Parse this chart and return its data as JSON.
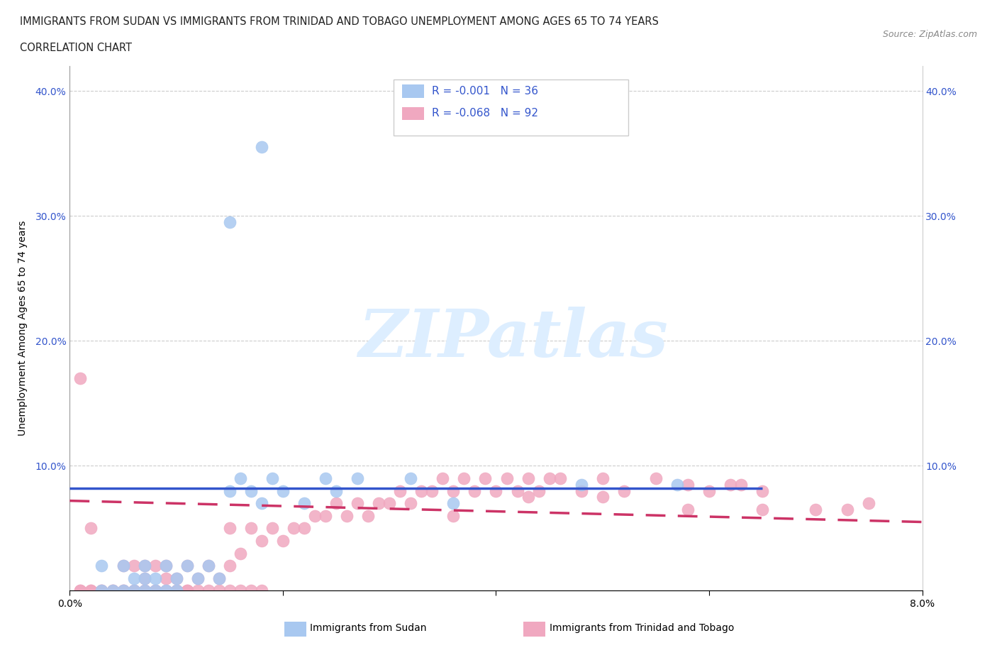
{
  "title_line1": "IMMIGRANTS FROM SUDAN VS IMMIGRANTS FROM TRINIDAD AND TOBAGO UNEMPLOYMENT AMONG AGES 65 TO 74 YEARS",
  "title_line2": "CORRELATION CHART",
  "source_text": "Source: ZipAtlas.com",
  "ylabel": "Unemployment Among Ages 65 to 74 years",
  "xlim": [
    0.0,
    0.08
  ],
  "ylim": [
    0.0,
    0.42
  ],
  "color_sudan": "#a8c8f0",
  "color_tt": "#f0a8c0",
  "trendline_sudan_color": "#3355cc",
  "trendline_tt_color": "#cc3366",
  "watermark_text": "ZIPatlas",
  "watermark_color": "#ddeeff",
  "legend_sudan_text": "R = -0.001   N = 36",
  "legend_tt_text": "R = -0.068   N = 92",
  "legend_color": "#3355cc",
  "sudan_trend_x": [
    0.0,
    0.065
  ],
  "sudan_trend_y": [
    0.082,
    0.082
  ],
  "tt_trend_x": [
    0.0,
    0.08
  ],
  "tt_trend_y": [
    0.072,
    0.055
  ],
  "sudan_scatter_x": [
    0.003,
    0.003,
    0.004,
    0.005,
    0.005,
    0.006,
    0.006,
    0.007,
    0.007,
    0.007,
    0.008,
    0.008,
    0.009,
    0.009,
    0.01,
    0.01,
    0.011,
    0.012,
    0.013,
    0.014,
    0.015,
    0.016,
    0.017,
    0.018,
    0.019,
    0.02,
    0.022,
    0.024,
    0.025,
    0.027,
    0.032,
    0.036,
    0.015,
    0.018,
    0.048,
    0.057
  ],
  "sudan_scatter_y": [
    0.0,
    0.02,
    0.0,
    0.0,
    0.02,
    0.0,
    0.01,
    0.0,
    0.01,
    0.02,
    0.0,
    0.01,
    0.0,
    0.02,
    0.0,
    0.01,
    0.02,
    0.01,
    0.02,
    0.01,
    0.08,
    0.09,
    0.08,
    0.07,
    0.09,
    0.08,
    0.07,
    0.09,
    0.08,
    0.09,
    0.09,
    0.07,
    0.295,
    0.355,
    0.085,
    0.085
  ],
  "tt_scatter_x": [
    0.001,
    0.002,
    0.003,
    0.004,
    0.005,
    0.005,
    0.006,
    0.006,
    0.007,
    0.007,
    0.007,
    0.008,
    0.008,
    0.009,
    0.009,
    0.01,
    0.01,
    0.011,
    0.011,
    0.012,
    0.013,
    0.014,
    0.015,
    0.015,
    0.016,
    0.017,
    0.018,
    0.019,
    0.02,
    0.021,
    0.022,
    0.023,
    0.024,
    0.025,
    0.026,
    0.027,
    0.028,
    0.029,
    0.03,
    0.031,
    0.032,
    0.033,
    0.034,
    0.035,
    0.036,
    0.037,
    0.038,
    0.039,
    0.04,
    0.041,
    0.042,
    0.043,
    0.044,
    0.045,
    0.046,
    0.048,
    0.05,
    0.052,
    0.055,
    0.058,
    0.06,
    0.062,
    0.063,
    0.065,
    0.001,
    0.002,
    0.003,
    0.004,
    0.005,
    0.006,
    0.007,
    0.008,
    0.009,
    0.01,
    0.011,
    0.012,
    0.013,
    0.014,
    0.015,
    0.016,
    0.017,
    0.018,
    0.036,
    0.043,
    0.05,
    0.058,
    0.065,
    0.07,
    0.073,
    0.075,
    0.001,
    0.002
  ],
  "tt_scatter_y": [
    0.0,
    0.0,
    0.0,
    0.0,
    0.0,
    0.02,
    0.0,
    0.02,
    0.0,
    0.01,
    0.02,
    0.0,
    0.02,
    0.01,
    0.02,
    0.0,
    0.01,
    0.0,
    0.02,
    0.01,
    0.02,
    0.01,
    0.02,
    0.05,
    0.03,
    0.05,
    0.04,
    0.05,
    0.04,
    0.05,
    0.05,
    0.06,
    0.06,
    0.07,
    0.06,
    0.07,
    0.06,
    0.07,
    0.07,
    0.08,
    0.07,
    0.08,
    0.08,
    0.09,
    0.08,
    0.09,
    0.08,
    0.09,
    0.08,
    0.09,
    0.08,
    0.09,
    0.08,
    0.09,
    0.09,
    0.08,
    0.09,
    0.08,
    0.09,
    0.085,
    0.08,
    0.085,
    0.085,
    0.08,
    0.0,
    0.0,
    0.0,
    0.0,
    0.0,
    0.0,
    0.0,
    0.0,
    0.0,
    0.0,
    0.0,
    0.0,
    0.0,
    0.0,
    0.0,
    0.0,
    0.0,
    0.0,
    0.06,
    0.075,
    0.075,
    0.065,
    0.065,
    0.065,
    0.065,
    0.07,
    0.17,
    0.05
  ]
}
